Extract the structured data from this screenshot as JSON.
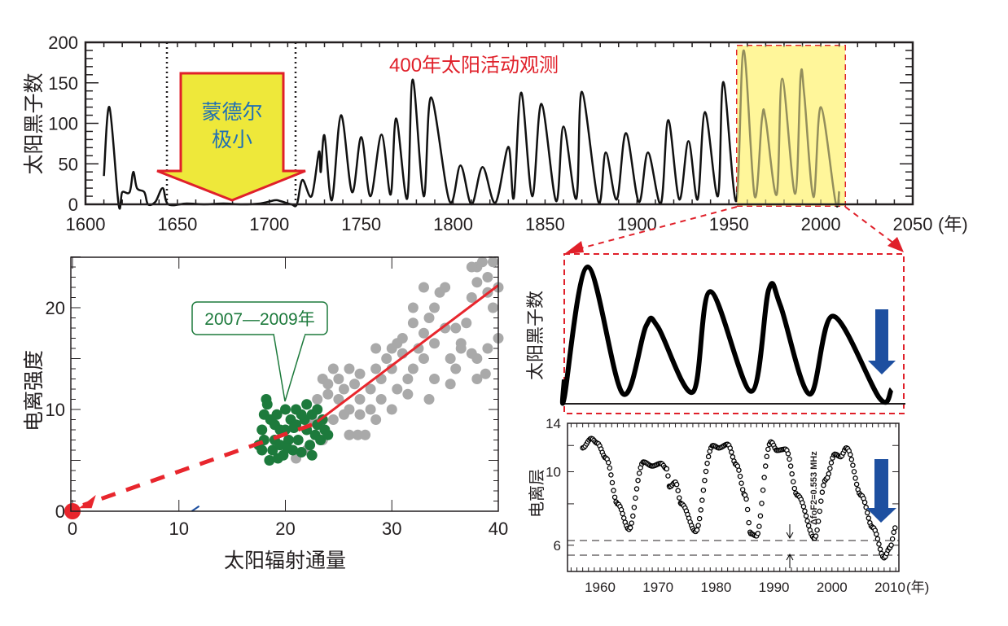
{
  "colors": {
    "highlight_fill": "#fff59a",
    "highlight_border": "#e0202a",
    "arrow_yellow": "#eee83a",
    "arrow_red": "#e0202a",
    "label_blue": "#1f6fb5",
    "green": "#1d7a3c",
    "gray": "#a9a9a9",
    "fit_red": "#e8262d",
    "down_arrow_blue": "#1d4fa0"
  },
  "chart_data": [
    {
      "type": "line",
      "title": "400年太阳活动观测",
      "ylabel": "太阳黑子数",
      "xlabel": "(年)",
      "xlim": [
        1600,
        2050
      ],
      "ylim": [
        0,
        200
      ],
      "x_ticks": [
        "1600",
        "1650",
        "1700",
        "1750",
        "1800",
        "1850",
        "1900",
        "1950",
        "2000",
        "2050"
      ],
      "y_ticks": [
        "0",
        "50",
        "100",
        "150",
        "200"
      ],
      "annotation": {
        "text_line1": "蒙德尔",
        "text_line2": "极小",
        "range": [
          1645,
          1715
        ]
      },
      "highlight_range": [
        1953,
        2011
      ],
      "x": [
        1610,
        1613,
        1618,
        1620,
        1624,
        1626,
        1628,
        1632,
        1634,
        1638,
        1642,
        1645,
        1655,
        1665,
        1675,
        1685,
        1695,
        1703,
        1706,
        1712,
        1715,
        1718,
        1723,
        1727,
        1728,
        1730,
        1734,
        1739,
        1745,
        1750,
        1755,
        1761,
        1766,
        1769,
        1775,
        1778,
        1784,
        1788,
        1798,
        1804,
        1810,
        1816,
        1823,
        1830,
        1833,
        1837,
        1843,
        1848,
        1856,
        1860,
        1867,
        1870,
        1879,
        1883,
        1889,
        1894,
        1901,
        1906,
        1913,
        1917,
        1923,
        1928,
        1933,
        1937,
        1944,
        1947,
        1954,
        1958,
        1964,
        1968,
        1970,
        1976,
        1979,
        1986,
        1989,
        1991,
        1996,
        2000,
        2008,
        2010
      ],
      "values": [
        35,
        120,
        0,
        15,
        15,
        40,
        20,
        15,
        0,
        3,
        20,
        0,
        1,
        0,
        1,
        0,
        1,
        5,
        4,
        0,
        0,
        30,
        10,
        65,
        40,
        85,
        5,
        110,
        15,
        83,
        10,
        86,
        12,
        106,
        7,
        154,
        10,
        132,
        4,
        48,
        0,
        46,
        2,
        71,
        8,
        138,
        10,
        124,
        4,
        96,
        7,
        139,
        3,
        64,
        6,
        88,
        3,
        64,
        1,
        104,
        6,
        78,
        6,
        114,
        10,
        151,
        4,
        190,
        10,
        106,
        105,
        12,
        155,
        13,
        158,
        135,
        9,
        120,
        3,
        16
      ]
    },
    {
      "type": "line",
      "ylabel": "太阳黑子数",
      "xlim": [
        1954,
        2011
      ],
      "series_source": "zoom of highlighted range"
    },
    {
      "type": "scatter",
      "xlabel": "太阳辐射通量",
      "ylabel": "电离强度",
      "xlim": [
        0,
        40
      ],
      "ylim": [
        0,
        25
      ],
      "x_ticks": [
        "0",
        "10",
        "20",
        "30",
        "40"
      ],
      "y_ticks": [
        "0",
        "10",
        "20"
      ],
      "callout": "2007—2009年",
      "series": [
        {
          "color": "#a9a9a9",
          "points": [
            [
              21,
              5.2
            ],
            [
              22,
              6
            ],
            [
              22.5,
              9
            ],
            [
              23,
              11
            ],
            [
              23.5,
              13
            ],
            [
              24,
              12.5
            ],
            [
              24.5,
              14
            ],
            [
              25,
              11
            ],
            [
              25,
              13
            ],
            [
              25.5,
              12
            ],
            [
              26,
              10
            ],
            [
              26,
              14
            ],
            [
              26.5,
              12.5
            ],
            [
              27,
              11
            ],
            [
              27,
              13.5
            ],
            [
              27.5,
              7.5
            ],
            [
              26,
              7.5
            ],
            [
              25.5,
              9.5
            ],
            [
              28,
              12
            ],
            [
              28.5,
              14
            ],
            [
              28,
              10
            ],
            [
              29,
              13
            ],
            [
              29.5,
              15
            ],
            [
              29,
              11
            ],
            [
              30,
              14
            ],
            [
              30.5,
              12
            ],
            [
              30,
              16
            ],
            [
              31,
              15.5
            ],
            [
              31.5,
              13
            ],
            [
              31,
              17
            ],
            [
              32,
              14
            ],
            [
              32.5,
              16
            ],
            [
              32,
              18.5
            ],
            [
              33,
              15
            ],
            [
              33,
              17.5
            ],
            [
              33.5,
              19
            ],
            [
              34,
              16.5
            ],
            [
              34,
              20
            ],
            [
              34,
              13
            ],
            [
              34.5,
              21.5
            ],
            [
              35,
              18
            ],
            [
              35,
              22
            ],
            [
              35.5,
              15
            ],
            [
              36,
              18
            ],
            [
              36,
              14
            ],
            [
              37,
              18.5
            ],
            [
              37.5,
              21
            ],
            [
              38,
              22.5
            ],
            [
              38,
              24
            ],
            [
              38.5,
              24.5
            ],
            [
              39,
              23
            ],
            [
              39.5,
              24.5
            ],
            [
              39,
              21.5
            ],
            [
              40,
              22
            ],
            [
              39.5,
              20
            ],
            [
              40,
              17
            ],
            [
              39,
              16
            ],
            [
              38,
              15
            ],
            [
              37.5,
              15.5
            ],
            [
              36.5,
              16.5
            ],
            [
              35.5,
              12.5
            ],
            [
              33.5,
              11
            ],
            [
              31.5,
              11.5
            ],
            [
              30,
              10
            ],
            [
              28.5,
              9
            ],
            [
              27,
              9.5
            ],
            [
              24.5,
              9
            ],
            [
              23.5,
              7
            ],
            [
              26.8,
              7.5
            ],
            [
              22,
              10.5
            ],
            [
              24,
              11.5
            ],
            [
              28.5,
              16
            ],
            [
              30.5,
              16.5
            ],
            [
              33,
              22
            ],
            [
              32,
              20
            ],
            [
              37.5,
              24
            ],
            [
              36.5,
              16
            ],
            [
              38.8,
              13.5
            ],
            [
              38,
              13
            ]
          ]
        },
        {
          "color": "#1d7a3c",
          "points": [
            [
              17.5,
              6.5
            ],
            [
              17.8,
              8
            ],
            [
              18,
              9.5
            ],
            [
              18.2,
              11
            ],
            [
              18.3,
              10.5
            ],
            [
              18,
              7
            ],
            [
              18.5,
              5
            ],
            [
              18.8,
              6
            ],
            [
              19,
              8.5
            ],
            [
              19,
              7
            ],
            [
              19.2,
              9.5
            ],
            [
              19.5,
              6.5
            ],
            [
              19.8,
              5.5
            ],
            [
              20,
              10
            ],
            [
              20,
              8
            ],
            [
              20.3,
              7
            ],
            [
              20.5,
              9
            ],
            [
              20.7,
              6
            ],
            [
              21,
              8.5
            ],
            [
              21,
              10
            ],
            [
              21.2,
              7
            ],
            [
              21.5,
              5.8
            ],
            [
              21.8,
              9
            ],
            [
              22,
              10.5
            ],
            [
              22,
              8
            ],
            [
              22.3,
              6.5
            ],
            [
              22.5,
              9.5
            ],
            [
              22.8,
              7.5
            ],
            [
              23,
              10
            ],
            [
              23,
              8.5
            ],
            [
              23.3,
              7
            ],
            [
              23.5,
              9
            ],
            [
              23.7,
              8
            ],
            [
              24,
              7.5
            ],
            [
              22.5,
              5.5
            ],
            [
              19.5,
              8
            ],
            [
              18.6,
              9
            ],
            [
              20.8,
              8.2
            ],
            [
              21.5,
              9.5
            ],
            [
              17.8,
              6
            ],
            [
              19.3,
              5.2
            ],
            [
              20.2,
              6.2
            ]
          ]
        }
      ],
      "fit_line": {
        "solid": [
          [
            23,
            8.8
          ],
          [
            40,
            22.2
          ]
        ],
        "dashed_extrapolation": [
          [
            22.5,
            8.5
          ],
          [
            1,
            0.6
          ]
        ],
        "origin_marker": [
          0,
          0
        ]
      }
    },
    {
      "type": "line",
      "ylabel": "电离层",
      "xlabel": "(年)",
      "xlim": [
        1954.4,
        2011.5
      ],
      "ylim": [
        5,
        14
      ],
      "y_scale": "log",
      "x_ticks": [
        "1960",
        "1970",
        "1980",
        "1990",
        "2000",
        "2010"
      ],
      "y_ticks": [
        "6",
        "10",
        "14"
      ],
      "annotation": "ΔfoF2=0.553 MHz",
      "reference_lines": [
        6.2,
        5.6
      ],
      "x": [
        1957,
        1958.5,
        1959.5,
        1961,
        1963,
        1965,
        1967.5,
        1969,
        1970.5,
        1971.5,
        1972,
        1973,
        1974,
        1976.5,
        1979.5,
        1980.5,
        1982,
        1983.5,
        1985,
        1986,
        1987,
        1989.5,
        1990.5,
        1992,
        1994,
        1997,
        1999,
        2000.5,
        2001.5,
        2002.5,
        2005,
        2007,
        2009,
        2010,
        2011
      ],
      "values": [
        11.8,
        12.6,
        12.2,
        11,
        8,
        6.7,
        10.7,
        10.4,
        10.6,
        10.2,
        9,
        9.3,
        8,
        6.6,
        12,
        11.8,
        12.1,
        10.5,
        8.5,
        6.5,
        6.4,
        12.3,
        11.6,
        11.7,
        8.5,
        6.3,
        9.5,
        11.3,
        11.1,
        11.8,
        8.5,
        6.8,
        5.5,
        5.9,
        6.8
      ]
    }
  ]
}
